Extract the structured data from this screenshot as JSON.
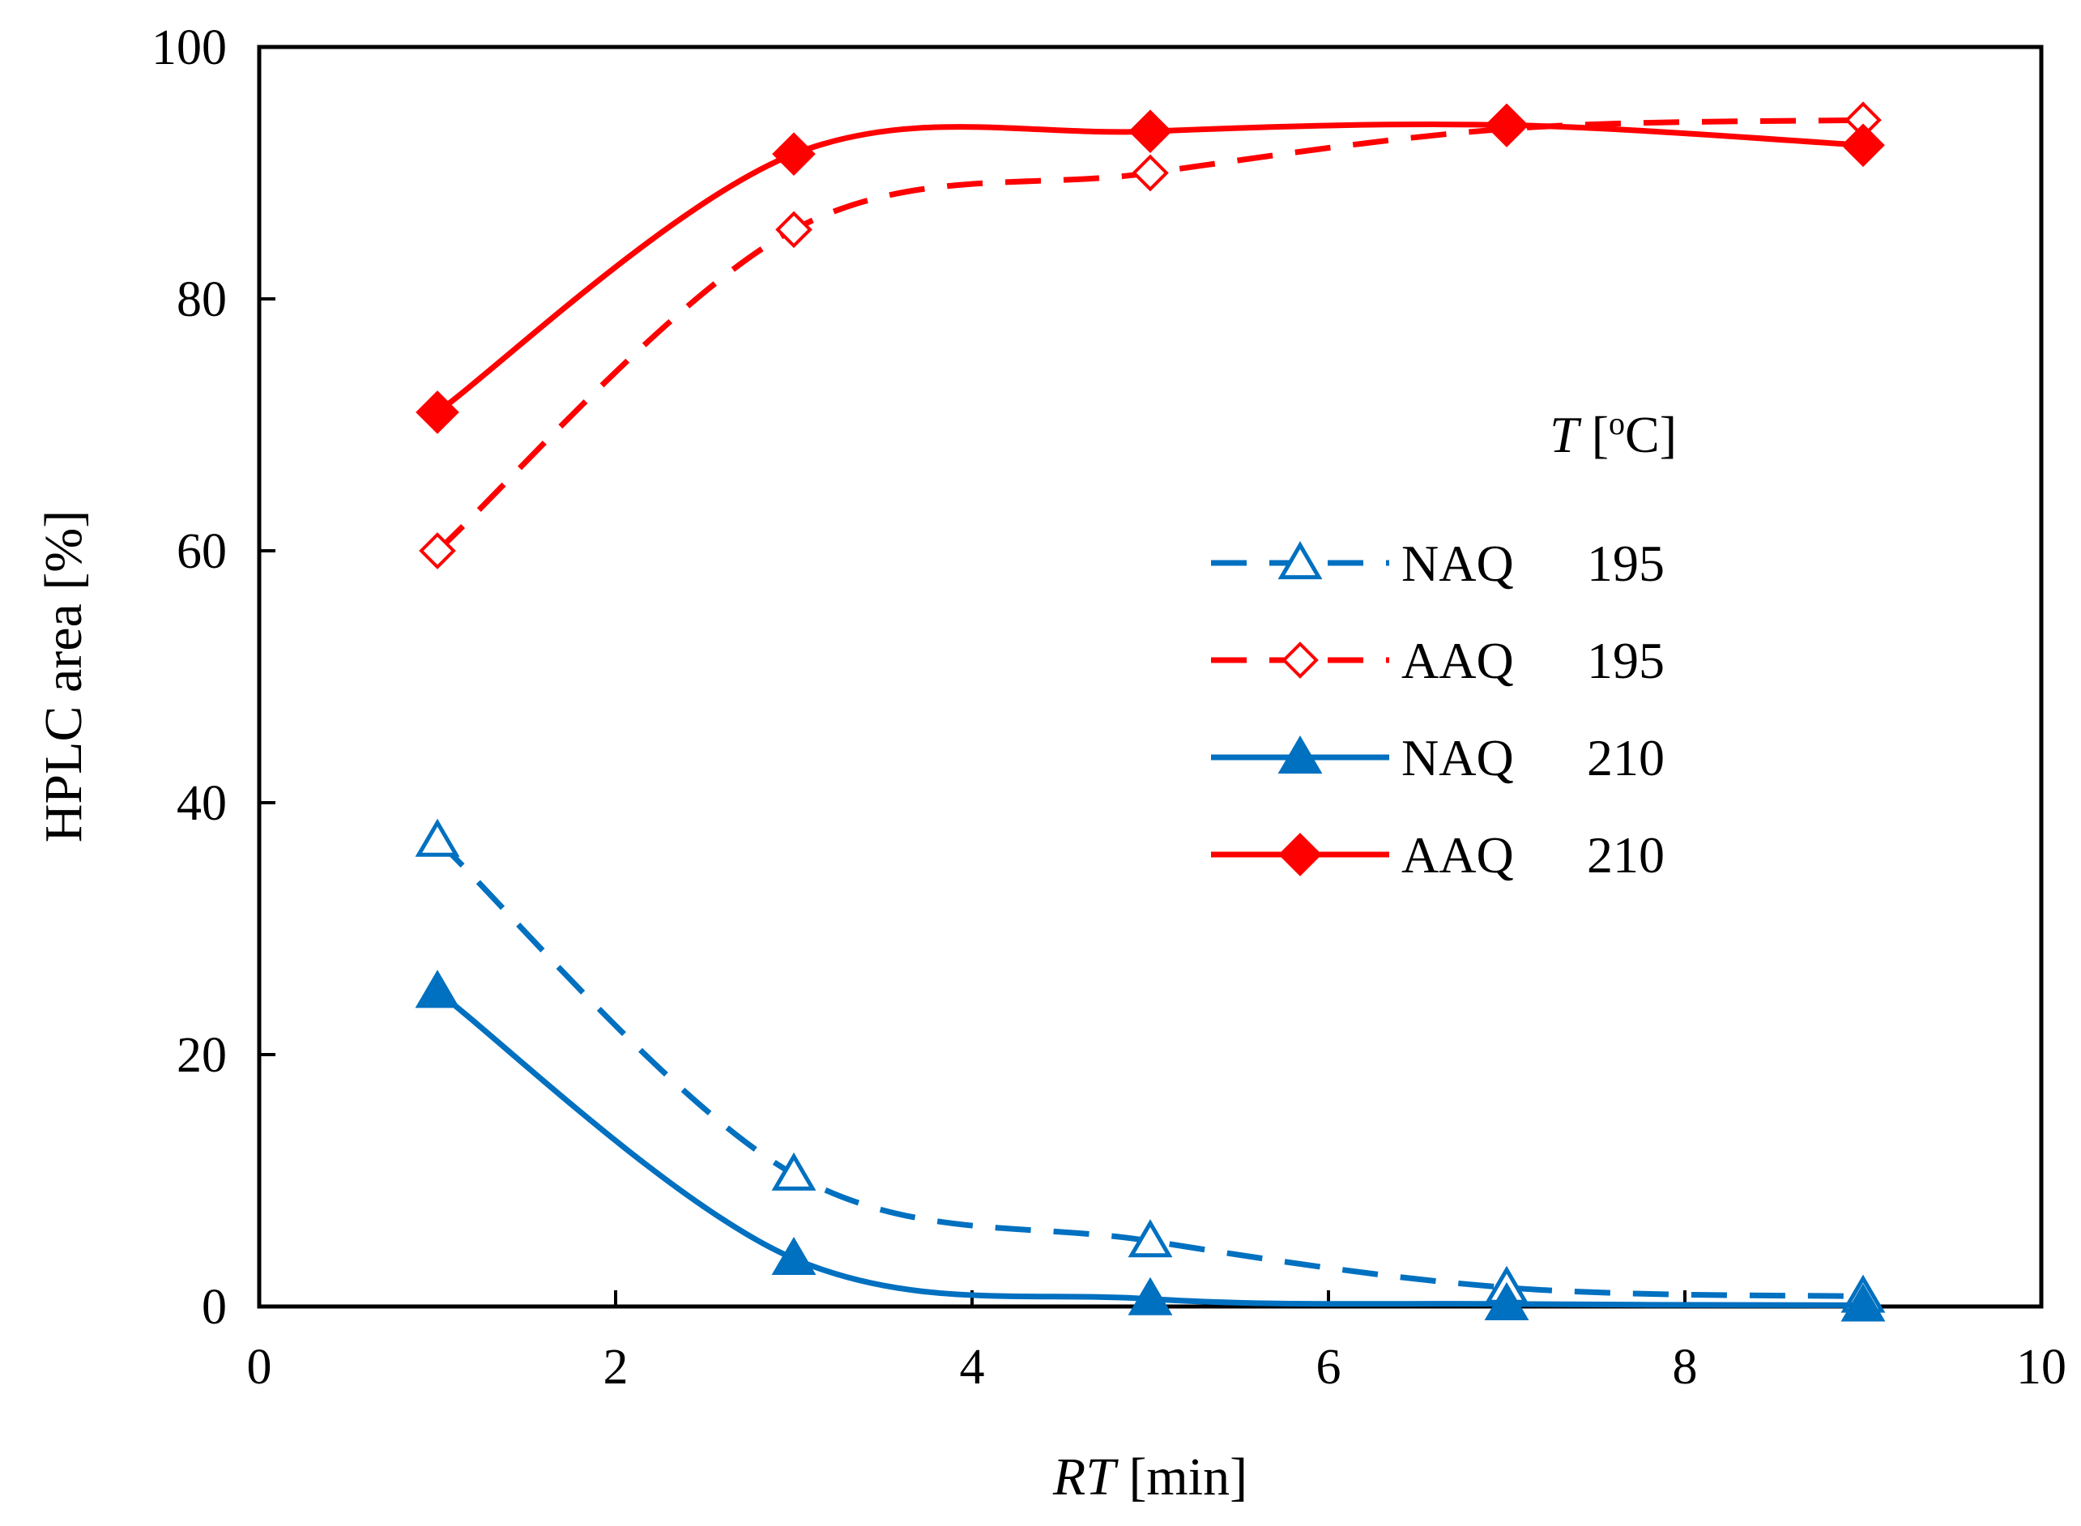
{
  "chart_data": {
    "type": "line",
    "xlabel_italic": "RT",
    "xlabel_unit": " [min]",
    "ylabel": "HPLC area [%]",
    "xlim": [
      0,
      10
    ],
    "ylim": [
      0,
      100
    ],
    "xticks": [
      0,
      2,
      4,
      6,
      8,
      10
    ],
    "yticks": [
      0,
      20,
      40,
      60,
      80,
      100
    ],
    "grid": false,
    "legend": {
      "title_italic": "T",
      "title_unit": " [oC]",
      "title_unit_prefix": " [",
      "title_unit_sup": "o",
      "title_unit_suffix": "C]",
      "position": "center-right"
    },
    "series": [
      {
        "name": "NAQ",
        "temp": "195",
        "color": "#0070C0",
        "line": "dashed",
        "marker": "triangle-open",
        "x": [
          1,
          3,
          5,
          7,
          9
        ],
        "y": [
          37,
          10.5,
          5.2,
          1.5,
          0.8
        ]
      },
      {
        "name": "AAQ",
        "temp": "195",
        "color": "#FF0000",
        "line": "dashed",
        "marker": "diamond-open",
        "x": [
          1,
          3,
          5,
          7,
          9
        ],
        "y": [
          60,
          85.5,
          90,
          93.5,
          94.2
        ]
      },
      {
        "name": "NAQ",
        "temp": "210",
        "color": "#0070C0",
        "line": "solid",
        "marker": "triangle-filled",
        "x": [
          1,
          3,
          5,
          7,
          9
        ],
        "y": [
          25,
          3.8,
          0.6,
          0.2,
          0.1
        ]
      },
      {
        "name": "AAQ",
        "temp": "210",
        "color": "#FF0000",
        "line": "solid",
        "marker": "diamond-filled",
        "x": [
          1,
          3,
          5,
          7,
          9
        ],
        "y": [
          71,
          91.5,
          93.3,
          93.8,
          92.2
        ]
      }
    ]
  }
}
